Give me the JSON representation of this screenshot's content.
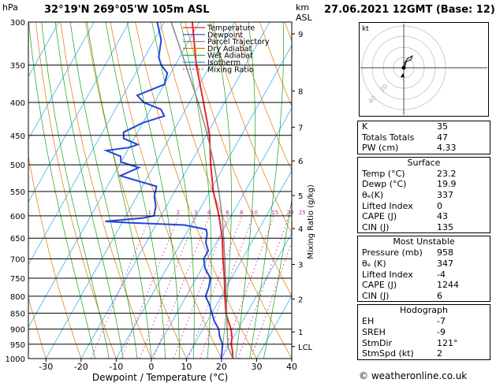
{
  "header": {
    "location": "32°19'N  269°05'W  105m  ASL",
    "datetime": "27.06.2021  12GMT  (Base: 12)",
    "hpa_label": "hPa",
    "km_label": "km",
    "asl_label": "ASL",
    "credit": "© weatheronline.co.uk"
  },
  "chart_data": {
    "type": "line",
    "title": "",
    "xlabel": "Dewpoint / Temperature (°C)",
    "ylabel_right": "Mixing Ratio (g/kg)",
    "x_range": [
      -35,
      40
    ],
    "p_range": [
      300,
      1000
    ],
    "pressure_ticks": [
      300,
      350,
      400,
      450,
      500,
      550,
      600,
      650,
      700,
      750,
      800,
      850,
      900,
      950,
      1000
    ],
    "temp_ticks": [
      -30,
      -20,
      -10,
      0,
      10,
      20,
      30,
      40
    ],
    "km_ticks": [
      {
        "label": "9",
        "p": 313
      },
      {
        "label": "8",
        "p": 384
      },
      {
        "label": "7",
        "p": 437
      },
      {
        "label": "6",
        "p": 493
      },
      {
        "label": "5",
        "p": 558
      },
      {
        "label": "4",
        "p": 628
      },
      {
        "label": "3",
        "p": 714
      },
      {
        "label": "2",
        "p": 808
      },
      {
        "label": "1",
        "p": 909
      },
      {
        "label": "LCL",
        "p": 958
      }
    ],
    "mixing_ratio_labels": [
      "1",
      "2",
      "3",
      "4",
      "6",
      "8",
      "10",
      "15",
      "20",
      "25"
    ],
    "mixing_ratio_values": [
      1,
      2,
      3,
      4,
      6,
      8,
      10,
      15,
      20,
      25
    ],
    "legend": [
      {
        "name": "Temperature",
        "color": "#e8242b"
      },
      {
        "name": "Dewpoint",
        "color": "#2244dd"
      },
      {
        "name": "Parcel Trajectory",
        "color": "#888888"
      },
      {
        "name": "Dry Adiabat",
        "color": "#e07800"
      },
      {
        "name": "Wet Adiabat",
        "color": "#1aa01a"
      },
      {
        "name": "Isotherm",
        "color": "#1ea8e8"
      },
      {
        "name": "Mixing Ratio",
        "color": "#cc22aa"
      }
    ],
    "series": [
      {
        "name": "Temperature",
        "color": "#e8242b",
        "points": [
          [
            1000,
            23.2
          ],
          [
            975,
            22
          ],
          [
            950,
            20.5
          ],
          [
            925,
            19.5
          ],
          [
            900,
            18
          ],
          [
            875,
            16
          ],
          [
            850,
            14
          ],
          [
            800,
            11
          ],
          [
            750,
            8
          ],
          [
            700,
            4.5
          ],
          [
            650,
            1
          ],
          [
            600,
            -3.5
          ],
          [
            550,
            -9
          ],
          [
            500,
            -14
          ],
          [
            450,
            -19
          ],
          [
            400,
            -26
          ],
          [
            350,
            -34
          ],
          [
            300,
            -42
          ]
        ]
      },
      {
        "name": "Dewpoint",
        "color": "#2244dd",
        "points": [
          [
            1000,
            19.9
          ],
          [
            975,
            19
          ],
          [
            950,
            18
          ],
          [
            925,
            16
          ],
          [
            900,
            14.5
          ],
          [
            875,
            12
          ],
          [
            850,
            10
          ],
          [
            825,
            8
          ],
          [
            800,
            5.5
          ],
          [
            775,
            5
          ],
          [
            750,
            4
          ],
          [
            725,
            1
          ],
          [
            700,
            -1
          ],
          [
            680,
            -1
          ],
          [
            660,
            -3
          ],
          [
            640,
            -4
          ],
          [
            630,
            -5
          ],
          [
            620,
            -12
          ],
          [
            615,
            -28
          ],
          [
            612,
            -35
          ],
          [
            605,
            -25
          ],
          [
            600,
            -22
          ],
          [
            580,
            -23
          ],
          [
            560,
            -25
          ],
          [
            540,
            -26
          ],
          [
            520,
            -38
          ],
          [
            505,
            -34
          ],
          [
            495,
            -40
          ],
          [
            485,
            -41
          ],
          [
            475,
            -46
          ],
          [
            470,
            -40
          ],
          [
            465,
            -38
          ],
          [
            455,
            -43
          ],
          [
            445,
            -44
          ],
          [
            430,
            -40
          ],
          [
            420,
            -35
          ],
          [
            410,
            -37
          ],
          [
            400,
            -43
          ],
          [
            390,
            -46
          ],
          [
            375,
            -40
          ],
          [
            360,
            -41
          ],
          [
            350,
            -44
          ],
          [
            340,
            -46
          ],
          [
            320,
            -48
          ],
          [
            300,
            -52
          ]
        ]
      },
      {
        "name": "Parcel Trajectory",
        "color": "#888888",
        "points": [
          [
            1000,
            23.2
          ],
          [
            958,
            19.9
          ],
          [
            900,
            16.9
          ],
          [
            850,
            14.2
          ],
          [
            800,
            11.4
          ],
          [
            750,
            8.3
          ],
          [
            700,
            5
          ],
          [
            650,
            1.4
          ],
          [
            600,
            -2.6
          ],
          [
            550,
            -7.4
          ],
          [
            500,
            -13
          ],
          [
            450,
            -19.6
          ],
          [
            400,
            -27.5
          ],
          [
            350,
            -37
          ],
          [
            300,
            -48
          ]
        ]
      }
    ],
    "wind_barbs": [
      {
        "p": 1000,
        "shape": "calm"
      },
      {
        "p": 950,
        "shape": "barb"
      },
      {
        "p": 850,
        "shape": "barb"
      },
      {
        "p": 700,
        "shape": "barb"
      },
      {
        "p": 500,
        "shape": "barb"
      },
      {
        "p": 400,
        "shape": "barb"
      },
      {
        "p": 300,
        "shape": "barb"
      }
    ]
  },
  "hodograph": {
    "unit_label": "kt",
    "ring_labels": [
      "40",
      "20"
    ]
  },
  "indices": {
    "rows": [
      {
        "label": "K",
        "value": "35"
      },
      {
        "label": "Totals Totals",
        "value": "47"
      },
      {
        "label": "PW (cm)",
        "value": "4.33"
      }
    ]
  },
  "surface": {
    "title": "Surface",
    "rows": [
      {
        "label": "Temp (°C)",
        "value": "23.2"
      },
      {
        "label": "Dewp (°C)",
        "value": "19.9"
      },
      {
        "label": "θₑ(K)",
        "value": "337"
      },
      {
        "label": "Lifted Index",
        "value": "0"
      },
      {
        "label": "CAPE (J)",
        "value": "43"
      },
      {
        "label": "CIN (J)",
        "value": "135"
      }
    ]
  },
  "most_unstable": {
    "title": "Most Unstable",
    "rows": [
      {
        "label": "Pressure (mb)",
        "value": "958"
      },
      {
        "label": "θₑ (K)",
        "value": "347"
      },
      {
        "label": "Lifted Index",
        "value": "-4"
      },
      {
        "label": "CAPE (J)",
        "value": "1244"
      },
      {
        "label": "CIN (J)",
        "value": "6"
      }
    ]
  },
  "hodograph_table": {
    "title": "Hodograph",
    "rows": [
      {
        "label": "EH",
        "value": "-7"
      },
      {
        "label": "SREH",
        "value": "-9"
      },
      {
        "label": "StmDir",
        "value": "121°"
      },
      {
        "label": "StmSpd (kt)",
        "value": "2"
      }
    ]
  }
}
